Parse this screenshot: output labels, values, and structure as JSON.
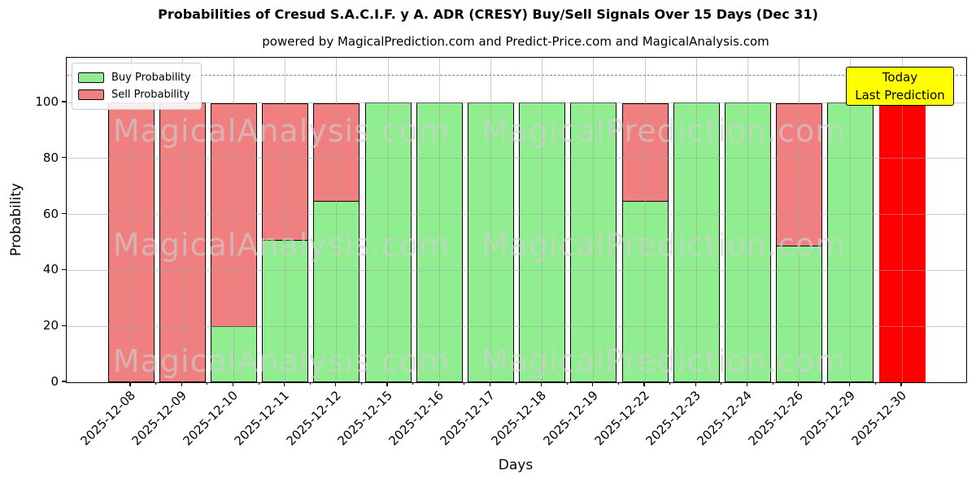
{
  "chart_data": {
    "type": "bar",
    "stacked": true,
    "title": "Probabilities of Cresud S.A.C.I.F. y A. ADR (CRESY) Buy/Sell Signals Over 15 Days (Dec 31)",
    "subtitle": "powered by MagicalPrediction.com and Predict-Price.com and MagicalAnalysis.com",
    "xlabel": "Days",
    "ylabel": "Probability",
    "categories": [
      "2025-12-08",
      "2025-12-09",
      "2025-12-10",
      "2025-12-11",
      "2025-12-12",
      "2025-12-15",
      "2025-12-16",
      "2025-12-17",
      "2025-12-18",
      "2025-12-19",
      "2025-12-22",
      "2025-12-23",
      "2025-12-24",
      "2025-12-26",
      "2025-12-29",
      "2025-12-30"
    ],
    "series": [
      {
        "name": "Buy Probability",
        "color": "#90ee90",
        "values": [
          0,
          0,
          20,
          51,
          65,
          100,
          100,
          100,
          100,
          100,
          65,
          100,
          100,
          49,
          100,
          0
        ]
      },
      {
        "name": "Sell Probability",
        "color": "#f08080",
        "values": [
          100,
          100,
          80,
          49,
          35,
          0,
          0,
          0,
          0,
          0,
          35,
          0,
          0,
          51,
          0,
          100
        ]
      }
    ],
    "highlight_bar": {
      "index": 15,
      "category": "2025-12-30",
      "color": "#ff0000"
    },
    "ylim": [
      0,
      116
    ],
    "yticks": [
      0,
      20,
      40,
      60,
      80,
      100
    ],
    "dashed_line_y": 110,
    "grid": true,
    "legend_position": "upper left",
    "annotation": {
      "line1": "Today",
      "line2": "Last Prediction",
      "bg": "#ffff00",
      "border": "#000000"
    },
    "watermark": {
      "left_text": "MagicalAnalysis.com",
      "right_text": "MagicalPrediction.com",
      "color": "#d0d0d0"
    }
  }
}
